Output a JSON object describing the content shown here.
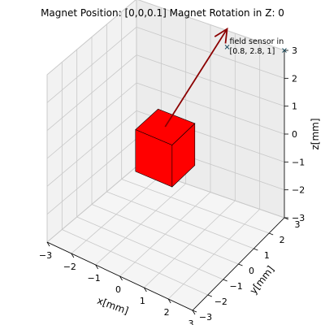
{
  "chart_data": {
    "type": "scatter",
    "projection": "3d",
    "title": "Magnet Position: [0,0,0.1] Magnet Rotation in Z: 0",
    "xlabel": "x[mm]",
    "ylabel": "y[mm]",
    "zlabel": "z[mm]",
    "xlim": [
      -3,
      3
    ],
    "ylim": [
      -3,
      3
    ],
    "zlim": [
      -3,
      3
    ],
    "xticks": [
      "−3",
      "−2",
      "−1",
      "0",
      "1",
      "2",
      "3"
    ],
    "yticks": [
      "−3",
      "−2",
      "−1",
      "0",
      "1",
      "2",
      "3"
    ],
    "zticks": [
      "−3",
      "−2",
      "−1",
      "0",
      "1",
      "2",
      "3"
    ],
    "grid": true,
    "magnet": {
      "shape": "cube",
      "position": [
        0,
        0,
        0.1
      ],
      "color": "#ff0000"
    },
    "magnetization_arrow": {
      "start": [
        0,
        0,
        0.1
      ],
      "end": [
        0.8,
        2.8,
        1
      ],
      "color": "#8b0000"
    },
    "sensors": [
      {
        "position": [
          0.8,
          2.8,
          1
        ],
        "marker": "x",
        "color": "#1f4e5f"
      },
      {
        "position": [
          3,
          3,
          3
        ],
        "marker": "x",
        "color": "#1f4e5f"
      }
    ],
    "annotations": [
      {
        "text": "field sensor in",
        "anchor": [
          0.8,
          2.8,
          1
        ]
      },
      {
        "text": "[0.8, 2.8, 1]",
        "anchor": [
          0.8,
          2.8,
          1
        ]
      }
    ]
  }
}
